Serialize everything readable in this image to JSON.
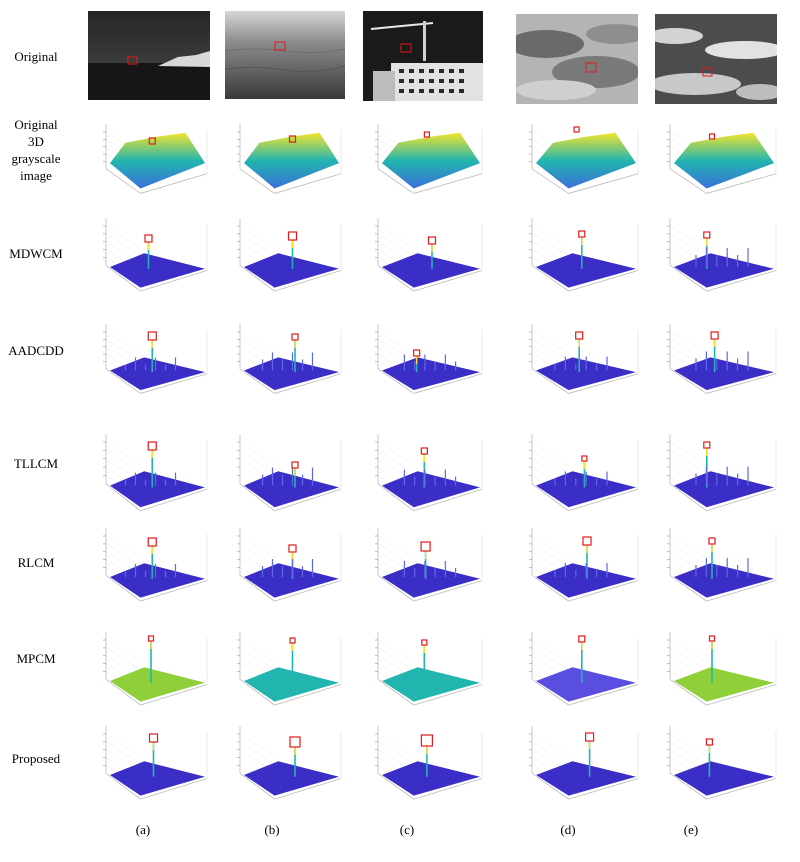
{
  "row_labels": {
    "original": "Original",
    "gray3d": [
      "Original",
      "3D",
      "grayscale",
      "image"
    ],
    "mdwcm": "MDWCM",
    "aadcdd": "AADCDD",
    "tllcm": "TLLCM",
    "rlcm": "RLCM",
    "mpcm": "MPCM",
    "proposed": "Proposed"
  },
  "column_labels": [
    "(a)",
    "(b)",
    "(c)",
    "(d)",
    "(e)"
  ],
  "colors": {
    "target_box": "#e0191b",
    "surface_base": "#3b2ec6",
    "yellow": "#f4e42a",
    "teal": "#22b5b0",
    "green": "#8fcf3a"
  }
}
